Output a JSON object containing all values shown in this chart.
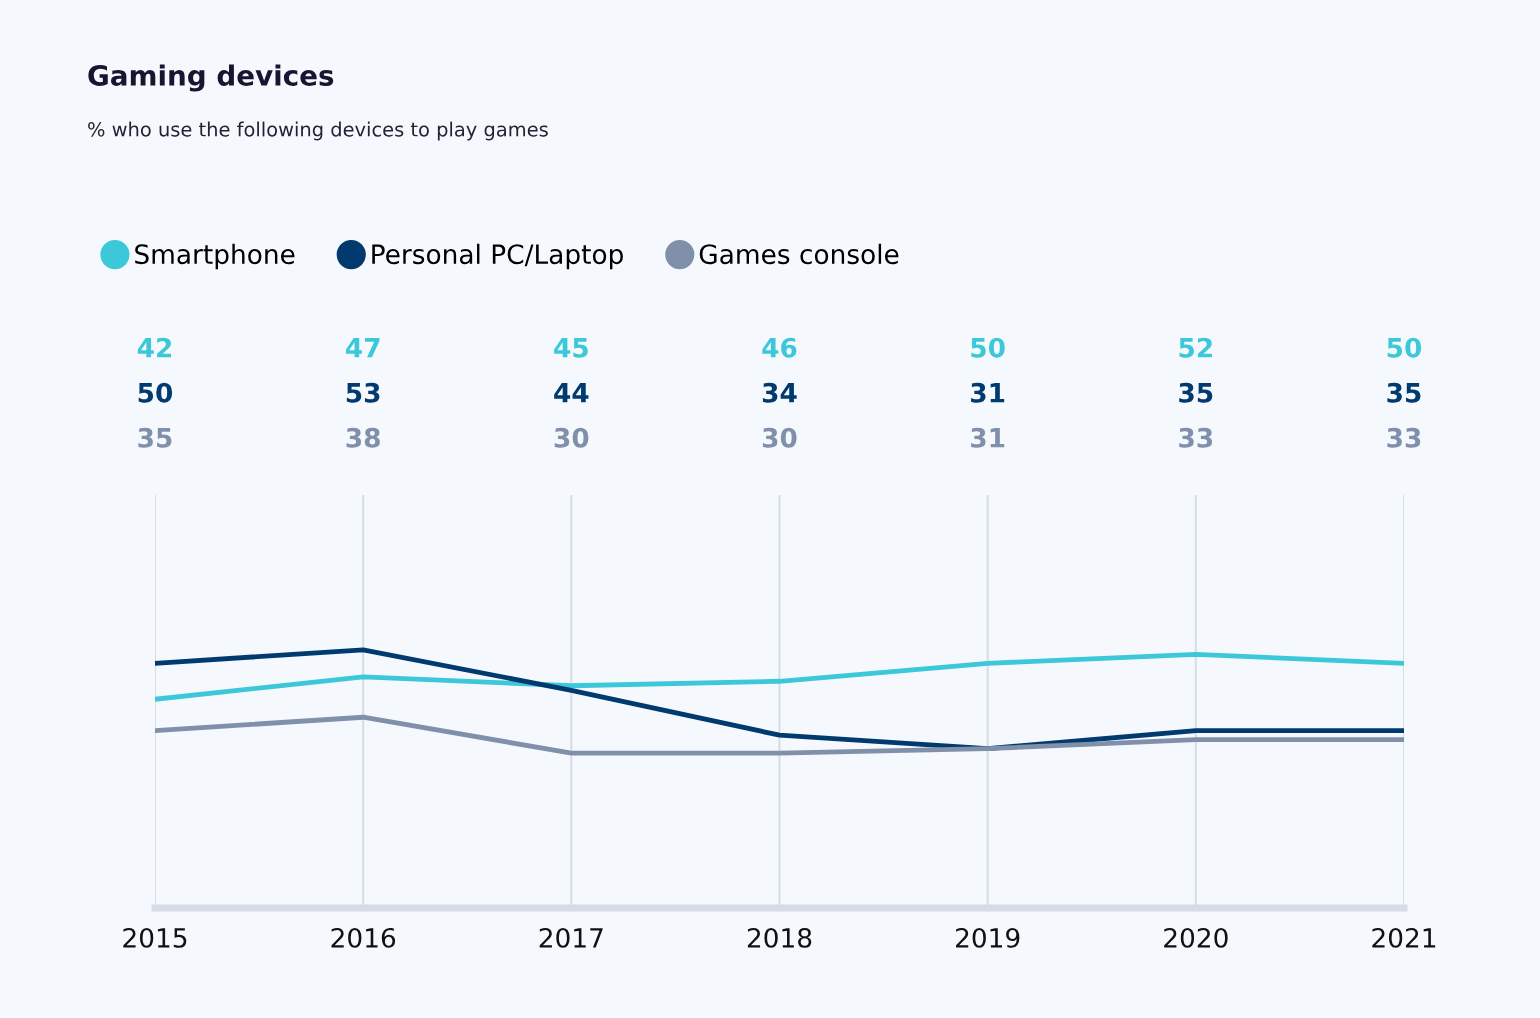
{
  "chart_data": {
    "type": "line",
    "title": "Gaming devices",
    "subtitle": "% who use the following devices to play games",
    "categories": [
      "2015",
      "2016",
      "2017",
      "2018",
      "2019",
      "2020",
      "2021"
    ],
    "series": [
      {
        "name": "Smartphone",
        "color": "#3cc8d8",
        "values": [
          42,
          47,
          45,
          46,
          50,
          52,
          50
        ]
      },
      {
        "name": "Personal PC/Laptop",
        "color": "#003a6e",
        "values": [
          50,
          53,
          44,
          34,
          31,
          35,
          35
        ]
      },
      {
        "name": "Games console",
        "color": "#8090ab",
        "values": [
          35,
          38,
          30,
          30,
          31,
          33,
          33
        ]
      }
    ],
    "tick_labels": "x",
    "grid": "x",
    "legend": "top left",
    "data_labels": true,
    "line_style": "solid"
  }
}
